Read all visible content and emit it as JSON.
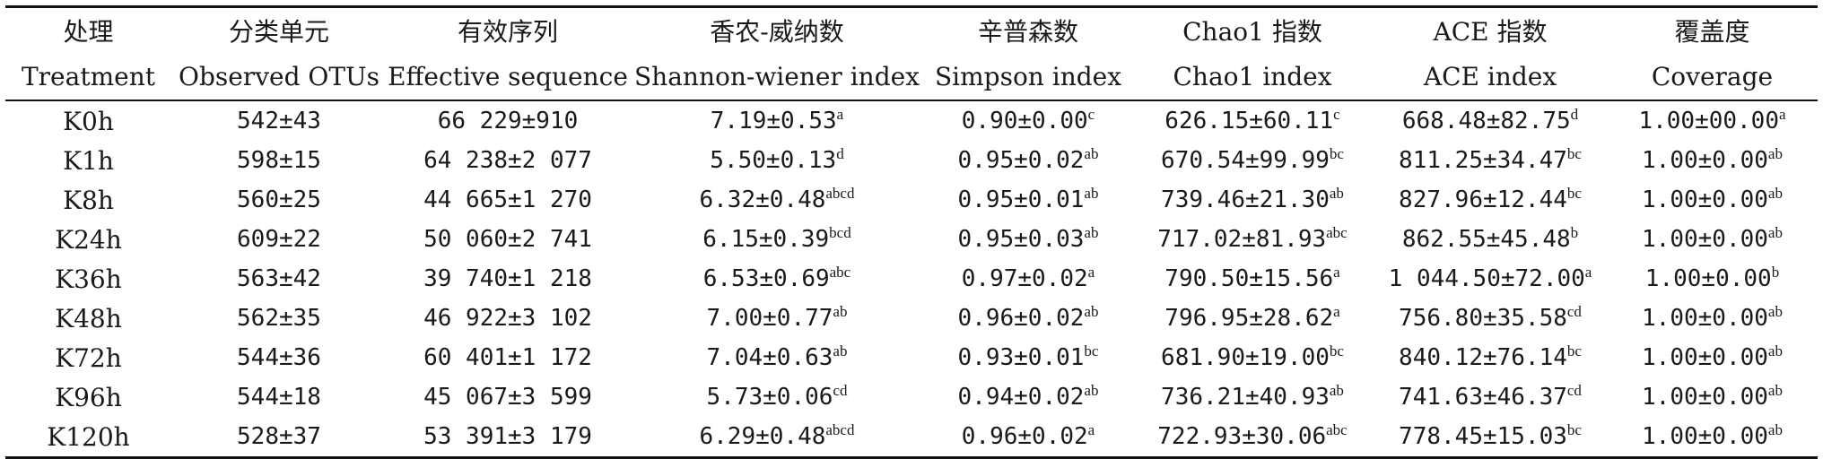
{
  "table": {
    "headers": [
      {
        "zh": "处理",
        "en": "Treatment"
      },
      {
        "zh": "分类单元",
        "en": "Observed OTUs"
      },
      {
        "zh": "有效序列",
        "en": "Effective sequence"
      },
      {
        "zh": "香农-威纳数",
        "en": "Shannon-wiener index"
      },
      {
        "zh": "辛普森数",
        "en": "Simpson index"
      },
      {
        "zh": "Chao1 指数",
        "en": "Chao1 index"
      },
      {
        "zh": "ACE 指数",
        "en": "ACE index"
      },
      {
        "zh": "覆盖度",
        "en": "Coverage"
      }
    ],
    "rows": [
      {
        "treatment": "K0h",
        "otus": "542±43",
        "seq": "66 229±910",
        "shannon": {
          "v": "7.19±0.53",
          "s": "a"
        },
        "simpson": {
          "v": "0.90±0.00",
          "s": "c"
        },
        "chao1": {
          "v": "626.15±60.11",
          "s": "c"
        },
        "ace": {
          "v": "668.48±82.75",
          "s": "d"
        },
        "coverage": {
          "v": "1.00±00.00",
          "s": "a"
        }
      },
      {
        "treatment": "K1h",
        "otus": "598±15",
        "seq": "64 238±2 077",
        "shannon": {
          "v": "5.50±0.13",
          "s": "d"
        },
        "simpson": {
          "v": "0.95±0.02",
          "s": "ab"
        },
        "chao1": {
          "v": "670.54±99.99",
          "s": "bc"
        },
        "ace": {
          "v": "811.25±34.47",
          "s": "bc"
        },
        "coverage": {
          "v": "1.00±0.00",
          "s": "ab"
        }
      },
      {
        "treatment": "K8h",
        "otus": "560±25",
        "seq": "44 665±1 270",
        "shannon": {
          "v": "6.32±0.48",
          "s": "abcd"
        },
        "simpson": {
          "v": "0.95±0.01",
          "s": "ab"
        },
        "chao1": {
          "v": "739.46±21.30",
          "s": "ab"
        },
        "ace": {
          "v": "827.96±12.44",
          "s": "bc"
        },
        "coverage": {
          "v": "1.00±0.00",
          "s": "ab"
        }
      },
      {
        "treatment": "K24h",
        "otus": "609±22",
        "seq": "50 060±2 741",
        "shannon": {
          "v": "6.15±0.39",
          "s": "bcd"
        },
        "simpson": {
          "v": "0.95±0.03",
          "s": "ab"
        },
        "chao1": {
          "v": "717.02±81.93",
          "s": "abc"
        },
        "ace": {
          "v": "862.55±45.48",
          "s": "b"
        },
        "coverage": {
          "v": "1.00±0.00",
          "s": "ab"
        }
      },
      {
        "treatment": "K36h",
        "otus": "563±42",
        "seq": "39 740±1 218",
        "shannon": {
          "v": "6.53±0.69",
          "s": "abc"
        },
        "simpson": {
          "v": "0.97±0.02",
          "s": "a"
        },
        "chao1": {
          "v": "790.50±15.56",
          "s": "a"
        },
        "ace": {
          "v": "1 044.50±72.00",
          "s": "a"
        },
        "coverage": {
          "v": "1.00±0.00",
          "s": "b"
        }
      },
      {
        "treatment": "K48h",
        "otus": "562±35",
        "seq": "46 922±3 102",
        "shannon": {
          "v": "7.00±0.77",
          "s": "ab"
        },
        "simpson": {
          "v": "0.96±0.02",
          "s": "ab"
        },
        "chao1": {
          "v": "796.95±28.62",
          "s": "a"
        },
        "ace": {
          "v": "756.80±35.58",
          "s": "cd"
        },
        "coverage": {
          "v": "1.00±0.00",
          "s": "ab"
        }
      },
      {
        "treatment": "K72h",
        "otus": "544±36",
        "seq": "60 401±1 172",
        "shannon": {
          "v": "7.04±0.63",
          "s": "ab"
        },
        "simpson": {
          "v": "0.93±0.01",
          "s": "bc"
        },
        "chao1": {
          "v": "681.90±19.00",
          "s": "bc"
        },
        "ace": {
          "v": "840.12±76.14",
          "s": "bc"
        },
        "coverage": {
          "v": "1.00±0.00",
          "s": "ab"
        }
      },
      {
        "treatment": "K96h",
        "otus": "544±18",
        "seq": "45 067±3 599",
        "shannon": {
          "v": "5.73±0.06",
          "s": "cd"
        },
        "simpson": {
          "v": "0.94±0.02",
          "s": "ab"
        },
        "chao1": {
          "v": "736.21±40.93",
          "s": "ab"
        },
        "ace": {
          "v": "741.63±46.37",
          "s": "cd"
        },
        "coverage": {
          "v": "1.00±0.00",
          "s": "ab"
        }
      },
      {
        "treatment": "K120h",
        "otus": "528±37",
        "seq": "53 391±3 179",
        "shannon": {
          "v": "6.29±0.48",
          "s": "abcd"
        },
        "simpson": {
          "v": "0.96±0.02",
          "s": "a"
        },
        "chao1": {
          "v": "722.93±30.06",
          "s": "abc"
        },
        "ace": {
          "v": "778.45±15.03",
          "s": "bc"
        },
        "coverage": {
          "v": "1.00±0.00",
          "s": "ab"
        }
      }
    ]
  }
}
